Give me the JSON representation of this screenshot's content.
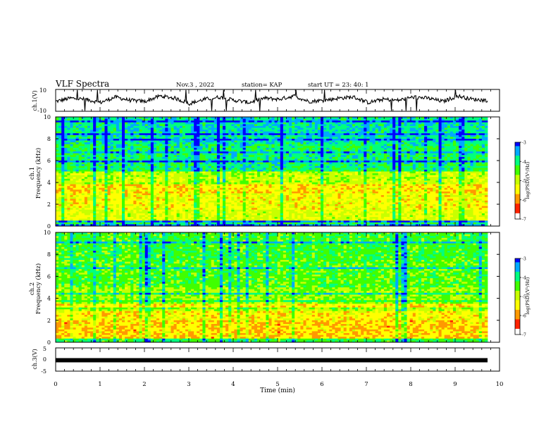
{
  "header": {
    "title": "VLF Spectra",
    "date": "Nov.3  , 2022",
    "station": "station= KAP",
    "start_time": "start  UT  =   23: 40: 1"
  },
  "chart_data": [
    {
      "type": "line",
      "panel": "ch1-waveform",
      "ylabel": "ch.1(V)",
      "ylim": [
        -10,
        10
      ],
      "ytick_labels": [
        "10",
        "-10"
      ],
      "xlim": [
        0,
        10
      ],
      "series": [
        {
          "values": [
            -1,
            2,
            1,
            -2,
            3,
            0,
            -1,
            4,
            2,
            -3,
            1,
            3,
            0,
            -2,
            2,
            1,
            4,
            -1,
            0,
            2,
            3,
            -2,
            1,
            0,
            3,
            2,
            -1,
            4,
            1,
            0
          ]
        }
      ]
    },
    {
      "type": "heatmap",
      "panel": "ch1-spectrogram",
      "ylabel": "ch.1\nFrequency  (kHz)",
      "ylim": [
        0,
        10
      ],
      "ytick_labels": [
        "0",
        "2",
        "4",
        "6",
        "8",
        "10"
      ],
      "xlim": [
        0,
        10
      ],
      "bands_khz_log_psd": [
        {
          "from": 0.0,
          "to": 0.5,
          "value": -4.2
        },
        {
          "from": 0.5,
          "to": 1.5,
          "value": -5.2
        },
        {
          "from": 1.5,
          "to": 3.0,
          "value": -5.4
        },
        {
          "from": 3.0,
          "to": 3.9,
          "value": -5.6
        },
        {
          "from": 3.9,
          "to": 5.0,
          "value": -5.0
        },
        {
          "from": 5.0,
          "to": 7.5,
          "value": -4.1
        },
        {
          "from": 7.5,
          "to": 10.0,
          "value": -3.9
        }
      ],
      "colorbar": {
        "label": "log(PSD)(V²/Hz)",
        "range": [
          -7,
          -3
        ],
        "tick_labels": [
          "-3",
          "-4",
          "-5",
          "-6",
          "-7"
        ]
      }
    },
    {
      "type": "heatmap",
      "panel": "ch2-spectrogram",
      "ylabel": "ch.2\nFrequency  (kHz)",
      "ylim": [
        0,
        10
      ],
      "ytick_labels": [
        "0",
        "2",
        "4",
        "6",
        "8",
        "10"
      ],
      "xlim": [
        0,
        10
      ],
      "bands_khz_log_psd": [
        {
          "from": 0.0,
          "to": 0.4,
          "value": -4.3
        },
        {
          "from": 0.4,
          "to": 2.0,
          "value": -5.7
        },
        {
          "from": 2.0,
          "to": 3.5,
          "value": -5.5
        },
        {
          "from": 3.5,
          "to": 5.0,
          "value": -4.8
        },
        {
          "from": 5.0,
          "to": 7.5,
          "value": -4.5
        },
        {
          "from": 7.5,
          "to": 10.0,
          "value": -4.4
        }
      ],
      "colorbar": {
        "label": "log(PSD)(V²/Hz)",
        "range": [
          -7,
          -3
        ],
        "tick_labels": [
          "-3",
          "-4",
          "-5",
          "-6",
          "-7"
        ]
      }
    },
    {
      "type": "line",
      "panel": "ch3-waveform",
      "ylabel": "ch.3(V)",
      "ylim": [
        -5,
        5
      ],
      "ytick_labels": [
        "5",
        "0",
        "-5"
      ],
      "xlim": [
        0,
        10
      ],
      "series": [
        {
          "values": [
            -0.3,
            -0.3,
            -0.3,
            -0.3,
            -0.3,
            -0.3,
            -0.3,
            -0.3,
            -0.3,
            -0.3,
            -0.3
          ]
        }
      ]
    }
  ],
  "xaxis": {
    "label": "Time  (min)",
    "tick_labels": [
      "0",
      "1",
      "2",
      "3",
      "4",
      "5",
      "6",
      "7",
      "8",
      "9",
      "10"
    ]
  },
  "colormap": [
    "#000060",
    "#0000ff",
    "#00aaff",
    "#00ff80",
    "#40ff00",
    "#c8ff00",
    "#ffff00",
    "#ff9900",
    "#ff2200",
    "#ffffff"
  ]
}
